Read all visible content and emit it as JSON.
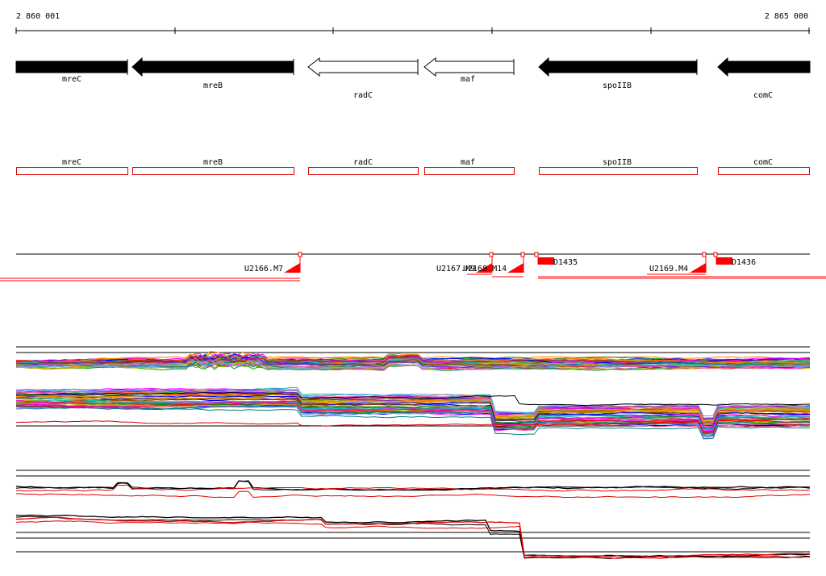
{
  "ruler": {
    "start_label": "2 860 001",
    "end_label": "2 865 000"
  },
  "genes": [
    {
      "name": "mreC",
      "filled": true,
      "strand": "+"
    },
    {
      "name": "mreB",
      "filled": true,
      "strand": "-"
    },
    {
      "name": "radC",
      "filled": false,
      "strand": "-"
    },
    {
      "name": "maf",
      "filled": false,
      "strand": "-"
    },
    {
      "name": "spoIIB",
      "filled": true,
      "strand": "-"
    },
    {
      "name": "comC",
      "filled": true,
      "strand": "-"
    }
  ],
  "cds": [
    {
      "name": "mreC"
    },
    {
      "name": "mreB"
    },
    {
      "name": "radC"
    },
    {
      "name": "maf"
    },
    {
      "name": "spoIIB"
    },
    {
      "name": "comC"
    }
  ],
  "features": [
    {
      "name": "U2166.M7",
      "type": "triangle"
    },
    {
      "name": "U2167.M9",
      "type": "triangle"
    },
    {
      "name": "U2168.M14",
      "type": "triangle"
    },
    {
      "name": "D1435",
      "type": "box"
    },
    {
      "name": "U2169.M4",
      "type": "triangle"
    },
    {
      "name": "D1436",
      "type": "box"
    }
  ],
  "colors": {
    "gene_fill": "#000000",
    "cds_outline": "#e00000",
    "feature": "#ff0000",
    "expression_palette": [
      "#ff0000",
      "#00a000",
      "#0000ff",
      "#ff00ff",
      "#00c0c0",
      "#c0c000",
      "#ff8000",
      "#8000ff",
      "#008080",
      "#804000",
      "#ff60a0",
      "#60a0ff",
      "#40c040",
      "#a0a000"
    ]
  }
}
